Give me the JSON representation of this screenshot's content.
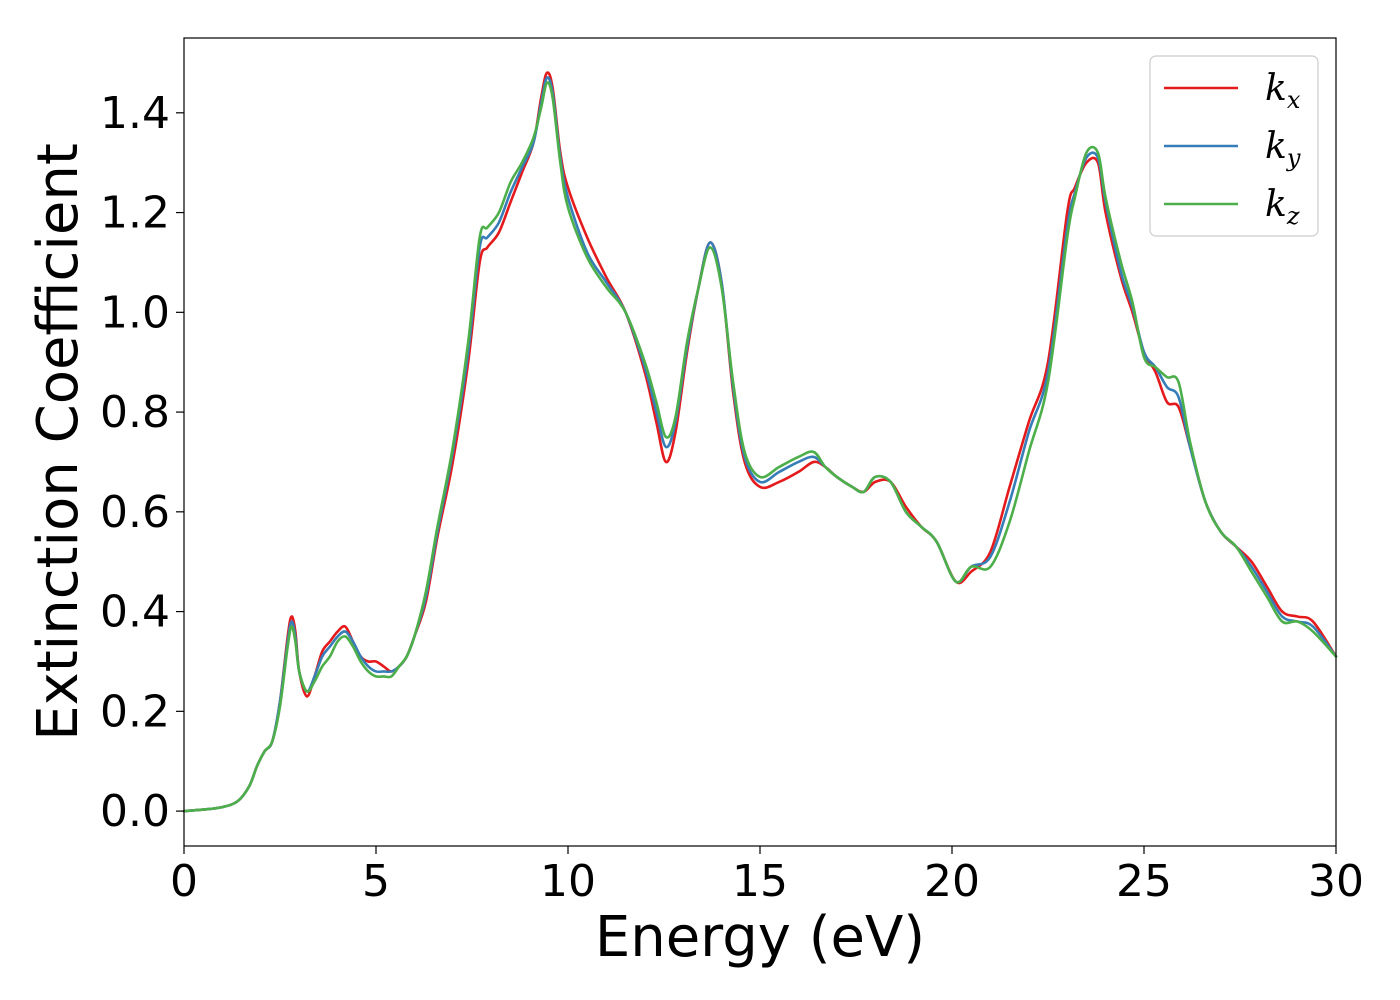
{
  "chart_data": {
    "type": "line",
    "title": "",
    "xlabel": "Energy (eV)",
    "ylabel": "Extinction Coefficient",
    "xlim": [
      0,
      30
    ],
    "ylim": [
      -0.07,
      1.55
    ],
    "xticks": [
      0,
      5,
      10,
      15,
      20,
      25,
      30
    ],
    "xtick_labels": [
      "0",
      "5",
      "10",
      "15",
      "20",
      "25",
      "30"
    ],
    "yticks": [
      0.0,
      0.2,
      0.4,
      0.6,
      0.8,
      1.0,
      1.2,
      1.4
    ],
    "ytick_labels": [
      "0.0",
      "0.2",
      "0.4",
      "0.6",
      "0.8",
      "1.0",
      "1.2",
      "1.4"
    ],
    "grid": false,
    "legend_position": "top-right",
    "series": [
      {
        "name": "k_x",
        "label_base": "k",
        "label_sub": "x",
        "color": "#e41a1c",
        "x": [
          0,
          0.5,
          1.0,
          1.4,
          1.7,
          1.9,
          2.1,
          2.3,
          2.5,
          2.7,
          2.8,
          2.9,
          3.0,
          3.2,
          3.4,
          3.6,
          3.8,
          4.0,
          4.2,
          4.4,
          4.6,
          4.8,
          5.0,
          5.2,
          5.4,
          5.6,
          5.8,
          6.0,
          6.3,
          6.6,
          7.0,
          7.4,
          7.7,
          7.9,
          8.2,
          8.5,
          8.8,
          9.1,
          9.3,
          9.45,
          9.6,
          9.8,
          10.0,
          10.5,
          11.0,
          11.5,
          12.0,
          12.3,
          12.55,
          12.8,
          13.1,
          13.4,
          13.7,
          14.0,
          14.3,
          14.6,
          15.0,
          15.5,
          16.0,
          16.4,
          16.7,
          17.0,
          17.4,
          17.7,
          18.0,
          18.4,
          18.8,
          19.2,
          19.6,
          20.1,
          20.5,
          21.0,
          21.5,
          22.0,
          22.5,
          23.0,
          23.2,
          23.5,
          23.8,
          24.0,
          24.4,
          24.7,
          25.0,
          25.3,
          25.6,
          25.9,
          26.2,
          26.6,
          27.0,
          27.4,
          27.8,
          28.2,
          28.6,
          29.0,
          29.4,
          30.0
        ],
        "y": [
          0.0,
          0.003,
          0.008,
          0.02,
          0.05,
          0.09,
          0.12,
          0.14,
          0.22,
          0.35,
          0.39,
          0.36,
          0.28,
          0.23,
          0.27,
          0.32,
          0.34,
          0.36,
          0.37,
          0.34,
          0.31,
          0.3,
          0.3,
          0.29,
          0.28,
          0.29,
          0.31,
          0.35,
          0.42,
          0.55,
          0.7,
          0.9,
          1.1,
          1.13,
          1.16,
          1.22,
          1.28,
          1.34,
          1.43,
          1.48,
          1.45,
          1.32,
          1.25,
          1.15,
          1.07,
          1.0,
          0.88,
          0.78,
          0.7,
          0.76,
          0.92,
          1.05,
          1.14,
          1.06,
          0.84,
          0.7,
          0.65,
          0.66,
          0.68,
          0.7,
          0.69,
          0.67,
          0.65,
          0.64,
          0.66,
          0.66,
          0.61,
          0.57,
          0.54,
          0.46,
          0.48,
          0.52,
          0.65,
          0.78,
          0.9,
          1.2,
          1.25,
          1.3,
          1.3,
          1.2,
          1.07,
          1.0,
          0.92,
          0.88,
          0.82,
          0.81,
          0.73,
          0.62,
          0.56,
          0.53,
          0.5,
          0.45,
          0.4,
          0.39,
          0.38,
          0.31
        ]
      },
      {
        "name": "k_y",
        "label_base": "k",
        "label_sub": "y",
        "color": "#377eb8",
        "x": [
          0,
          0.5,
          1.0,
          1.4,
          1.7,
          1.9,
          2.1,
          2.3,
          2.5,
          2.7,
          2.8,
          2.9,
          3.0,
          3.2,
          3.4,
          3.6,
          3.8,
          4.0,
          4.2,
          4.4,
          4.6,
          4.8,
          5.0,
          5.2,
          5.4,
          5.6,
          5.8,
          6.0,
          6.3,
          6.6,
          7.0,
          7.4,
          7.7,
          7.9,
          8.2,
          8.5,
          8.8,
          9.1,
          9.3,
          9.45,
          9.6,
          9.8,
          10.0,
          10.5,
          11.0,
          11.5,
          12.0,
          12.3,
          12.55,
          12.8,
          13.1,
          13.4,
          13.7,
          14.0,
          14.3,
          14.6,
          15.0,
          15.5,
          16.0,
          16.4,
          16.7,
          17.0,
          17.4,
          17.7,
          18.0,
          18.4,
          18.8,
          19.2,
          19.6,
          20.1,
          20.5,
          21.0,
          21.5,
          22.0,
          22.5,
          23.0,
          23.2,
          23.5,
          23.8,
          24.0,
          24.4,
          24.7,
          25.0,
          25.3,
          25.6,
          25.9,
          26.2,
          26.6,
          27.0,
          27.4,
          27.8,
          28.2,
          28.6,
          29.0,
          29.4,
          30.0
        ],
        "y": [
          0.0,
          0.003,
          0.008,
          0.02,
          0.05,
          0.09,
          0.12,
          0.14,
          0.22,
          0.34,
          0.38,
          0.35,
          0.28,
          0.24,
          0.27,
          0.31,
          0.33,
          0.35,
          0.36,
          0.34,
          0.31,
          0.29,
          0.28,
          0.28,
          0.28,
          0.29,
          0.31,
          0.35,
          0.43,
          0.56,
          0.72,
          0.92,
          1.13,
          1.15,
          1.18,
          1.24,
          1.29,
          1.34,
          1.42,
          1.47,
          1.44,
          1.31,
          1.23,
          1.12,
          1.06,
          1.0,
          0.89,
          0.8,
          0.73,
          0.78,
          0.93,
          1.05,
          1.14,
          1.06,
          0.85,
          0.71,
          0.66,
          0.68,
          0.7,
          0.71,
          0.69,
          0.67,
          0.65,
          0.64,
          0.67,
          0.66,
          0.6,
          0.57,
          0.54,
          0.46,
          0.49,
          0.51,
          0.62,
          0.76,
          0.88,
          1.17,
          1.24,
          1.31,
          1.31,
          1.22,
          1.08,
          1.01,
          0.92,
          0.89,
          0.85,
          0.83,
          0.73,
          0.62,
          0.56,
          0.53,
          0.49,
          0.44,
          0.39,
          0.38,
          0.37,
          0.31
        ]
      },
      {
        "name": "k_z",
        "label_base": "k",
        "label_sub": "z",
        "color": "#4daf4a",
        "x": [
          0,
          0.5,
          1.0,
          1.4,
          1.7,
          1.9,
          2.1,
          2.3,
          2.5,
          2.7,
          2.8,
          2.9,
          3.0,
          3.2,
          3.4,
          3.6,
          3.8,
          4.0,
          4.2,
          4.4,
          4.6,
          4.8,
          5.0,
          5.2,
          5.4,
          5.6,
          5.8,
          6.0,
          6.3,
          6.6,
          7.0,
          7.4,
          7.7,
          7.9,
          8.2,
          8.5,
          8.8,
          9.1,
          9.3,
          9.45,
          9.6,
          9.8,
          10.0,
          10.5,
          11.0,
          11.5,
          12.0,
          12.3,
          12.55,
          12.8,
          13.1,
          13.4,
          13.7,
          14.0,
          14.3,
          14.6,
          15.0,
          15.5,
          16.0,
          16.4,
          16.7,
          17.0,
          17.4,
          17.7,
          18.0,
          18.4,
          18.8,
          19.2,
          19.6,
          20.1,
          20.5,
          21.0,
          21.5,
          22.0,
          22.5,
          23.0,
          23.2,
          23.5,
          23.8,
          24.0,
          24.4,
          24.7,
          25.0,
          25.3,
          25.6,
          25.9,
          26.2,
          26.6,
          27.0,
          27.4,
          27.8,
          28.2,
          28.6,
          29.0,
          29.4,
          30.0
        ],
        "y": [
          0.0,
          0.003,
          0.008,
          0.02,
          0.05,
          0.09,
          0.12,
          0.14,
          0.21,
          0.33,
          0.37,
          0.34,
          0.28,
          0.24,
          0.26,
          0.29,
          0.31,
          0.34,
          0.35,
          0.33,
          0.3,
          0.28,
          0.27,
          0.27,
          0.27,
          0.29,
          0.31,
          0.35,
          0.44,
          0.57,
          0.73,
          0.94,
          1.15,
          1.17,
          1.2,
          1.26,
          1.3,
          1.35,
          1.41,
          1.46,
          1.43,
          1.3,
          1.21,
          1.11,
          1.05,
          1.0,
          0.9,
          0.82,
          0.75,
          0.79,
          0.94,
          1.05,
          1.13,
          1.05,
          0.86,
          0.72,
          0.67,
          0.69,
          0.71,
          0.72,
          0.69,
          0.67,
          0.65,
          0.64,
          0.67,
          0.66,
          0.6,
          0.57,
          0.54,
          0.46,
          0.49,
          0.49,
          0.58,
          0.72,
          0.86,
          1.15,
          1.23,
          1.32,
          1.32,
          1.23,
          1.1,
          1.02,
          0.91,
          0.89,
          0.87,
          0.86,
          0.74,
          0.62,
          0.56,
          0.53,
          0.48,
          0.43,
          0.38,
          0.38,
          0.36,
          0.31
        ]
      }
    ]
  }
}
